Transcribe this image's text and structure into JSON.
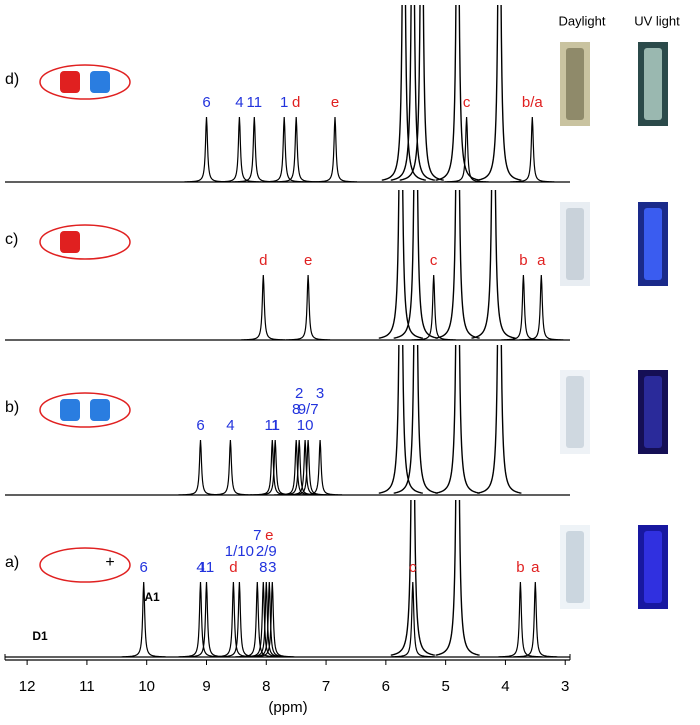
{
  "figure": {
    "columns": [
      "Daylight",
      "UV light"
    ],
    "axis": {
      "label": "(ppm)",
      "xlim": [
        12.37,
        2.92
      ],
      "ticks": [
        12,
        11,
        10,
        9,
        8,
        7,
        6,
        5,
        4,
        3
      ]
    },
    "structure_labels": [
      "D1",
      "A1",
      "+"
    ],
    "panels": [
      {
        "label": "d)",
        "solvent_peaks": [
          5.7,
          5.55,
          5.4,
          4.8,
          4.1
        ],
        "peaks": [
          {
            "label": "6",
            "ppm": 9.0,
            "color": "#2233dd"
          },
          {
            "label": "4",
            "ppm": 8.45,
            "color": "#2233dd"
          },
          {
            "label": "11",
            "ppm": 8.2,
            "color": "#2233dd"
          },
          {
            "label": "1",
            "ppm": 7.7,
            "color": "#2233dd"
          },
          {
            "label": "d",
            "ppm": 7.5,
            "color": "#e02020"
          },
          {
            "label": "e",
            "ppm": 6.85,
            "color": "#e02020"
          },
          {
            "label": "c",
            "ppm": 4.65,
            "color": "#e02020"
          },
          {
            "label": "b/a",
            "ppm": 3.55,
            "color": "#e02020"
          }
        ]
      },
      {
        "label": "c)",
        "solvent_peaks": [
          5.75,
          5.5,
          4.8,
          4.2
        ],
        "peaks": [
          {
            "label": "d",
            "ppm": 8.05,
            "color": "#e02020"
          },
          {
            "label": "e",
            "ppm": 7.3,
            "color": "#e02020"
          },
          {
            "label": "c",
            "ppm": 5.2,
            "color": "#e02020"
          },
          {
            "label": "b",
            "ppm": 3.7,
            "color": "#e02020"
          },
          {
            "label": "a",
            "ppm": 3.4,
            "color": "#e02020"
          }
        ]
      },
      {
        "label": "b)",
        "solvent_peaks": [
          5.75,
          5.5,
          4.8,
          4.1
        ],
        "peaks": [
          {
            "label": "6",
            "ppm": 9.1,
            "color": "#2233dd"
          },
          {
            "label": "4",
            "ppm": 8.6,
            "color": "#2233dd"
          },
          {
            "label": "11",
            "ppm": 7.9,
            "color": "#2233dd"
          },
          {
            "label": "1",
            "ppm": 7.85,
            "color": "#2233dd"
          },
          {
            "label": "8",
            "ppm": 7.5,
            "color": "#2233dd"
          },
          {
            "label": "2",
            "ppm": 7.45,
            "color": "#2233dd"
          },
          {
            "label": "10",
            "ppm": 7.35,
            "color": "#2233dd"
          },
          {
            "label": "9/7",
            "ppm": 7.3,
            "color": "#2233dd"
          },
          {
            "label": "3",
            "ppm": 7.1,
            "color": "#2233dd"
          }
        ]
      },
      {
        "label": "a)",
        "solvent_peaks": [
          5.55,
          4.8
        ],
        "peaks": [
          {
            "label": "6",
            "ppm": 10.05,
            "color": "#2233dd"
          },
          {
            "label": "4",
            "ppm": 9.1,
            "color": "#2233dd"
          },
          {
            "label": "11",
            "ppm": 9.0,
            "color": "#2233dd"
          },
          {
            "label": "d",
            "ppm": 8.55,
            "color": "#e02020"
          },
          {
            "label": "1/10",
            "ppm": 8.45,
            "color": "#2233dd"
          },
          {
            "label": "7",
            "ppm": 8.15,
            "color": "#2233dd"
          },
          {
            "label": "8",
            "ppm": 8.05,
            "color": "#2233dd"
          },
          {
            "label": "2/9",
            "ppm": 8.0,
            "color": "#2233dd"
          },
          {
            "label": "e",
            "ppm": 7.95,
            "color": "#e02020"
          },
          {
            "label": "3",
            "ppm": 7.9,
            "color": "#2233dd"
          },
          {
            "label": "c",
            "ppm": 5.55,
            "color": "#e02020"
          },
          {
            "label": "b",
            "ppm": 3.75,
            "color": "#e02020"
          },
          {
            "label": "a",
            "ppm": 3.5,
            "color": "#e02020"
          }
        ]
      }
    ]
  }
}
